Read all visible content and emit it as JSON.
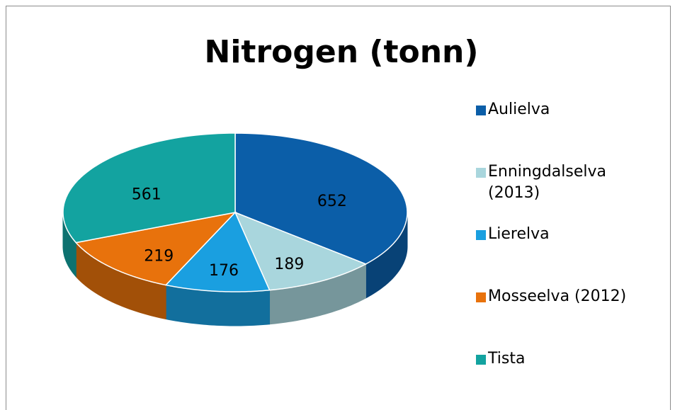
{
  "chart_data": {
    "type": "pie",
    "title": "Nitrogen (tonn)",
    "categories": [
      "Aulielva",
      "Enningdalselva (2013)",
      "Lierelva",
      "Mosseelva (2012)",
      "Tista"
    ],
    "values": [
      652,
      189,
      176,
      219,
      561
    ],
    "colors": [
      "#0b5ea8",
      "#a9d6dd",
      "#1a9fe0",
      "#e8720c",
      "#13a3a0"
    ],
    "legend": "right"
  }
}
